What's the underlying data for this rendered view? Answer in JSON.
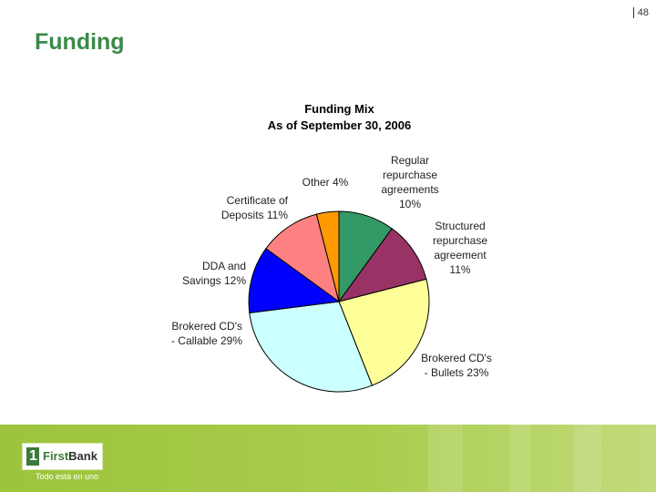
{
  "page": {
    "number": "48",
    "title": "Funding"
  },
  "chart_data": {
    "type": "pie",
    "title": "Funding Mix",
    "subtitle": "As of September 30, 2006",
    "slices": [
      {
        "label": "Regular\nrepurchase\nagreements\n10%",
        "value": 10,
        "color": "#339966"
      },
      {
        "label": "Structured\nrepurchase\nagreement\n11%",
        "value": 11,
        "color": "#993366"
      },
      {
        "label": "Brokered CD's\n- Bullets 23%",
        "value": 23,
        "color": "#ffff99"
      },
      {
        "label": "Brokered CD's\n- Callable 29%",
        "value": 29,
        "color": "#ccffff"
      },
      {
        "label": "DDA and\nSavings 12%",
        "value": 12,
        "color": "#0000ff"
      },
      {
        "label": "Certificate of\nDeposits 11%",
        "value": 11,
        "color": "#ff8080"
      },
      {
        "label": "Other 4%",
        "value": 4,
        "color": "#ff9900"
      }
    ]
  },
  "footer": {
    "logo_one": "1",
    "logo_first": "First",
    "logo_bank": "Bank",
    "tagline": "Todo está en uno"
  }
}
